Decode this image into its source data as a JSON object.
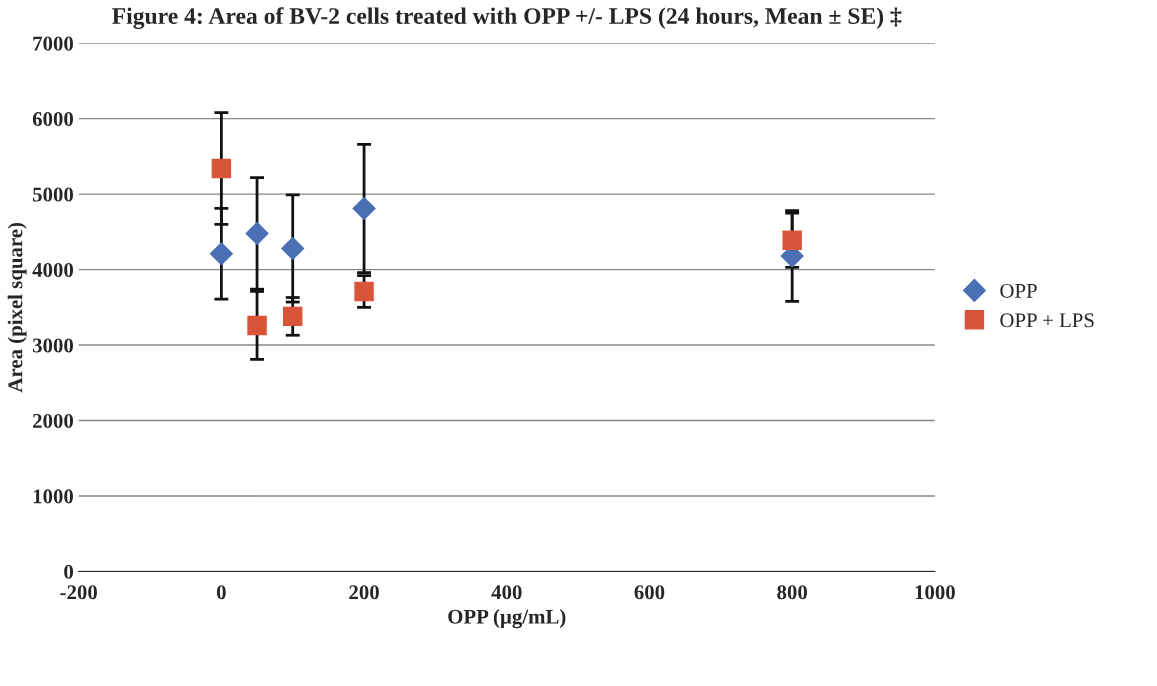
{
  "chart_data": {
    "type": "scatter",
    "title": "Figure 4: Area of BV-2 cells treated with OPP +/- LPS (24 hours, Mean ± SE) ‡",
    "xlabel": "OPP (µg/mL)",
    "ylabel": "Area (pixel square)",
    "xlim": [
      -200,
      1000
    ],
    "xticks": [
      -200,
      0,
      200,
      400,
      600,
      800,
      1000
    ],
    "ylim": [
      0,
      7000
    ],
    "yticks": [
      0,
      1000,
      2000,
      3000,
      4000,
      5000,
      6000,
      7000
    ],
    "grid": "y",
    "legend": "right",
    "series": [
      {
        "name": "OPP",
        "color": "#4a6fb5",
        "marker": "diamond",
        "x": [
          0,
          50,
          100,
          200,
          800
        ],
        "values": [
          4210,
          4480,
          4280,
          4810,
          4180
        ],
        "errors": [
          600,
          740,
          710,
          850,
          600
        ]
      },
      {
        "name": "OPP + LPS",
        "color": "#d9553a",
        "marker": "square",
        "x": [
          0,
          50,
          100,
          200,
          800
        ],
        "values": [
          5340,
          3260,
          3380,
          3710,
          4390
        ],
        "errors": [
          740,
          450,
          250,
          210,
          360
        ]
      }
    ]
  }
}
